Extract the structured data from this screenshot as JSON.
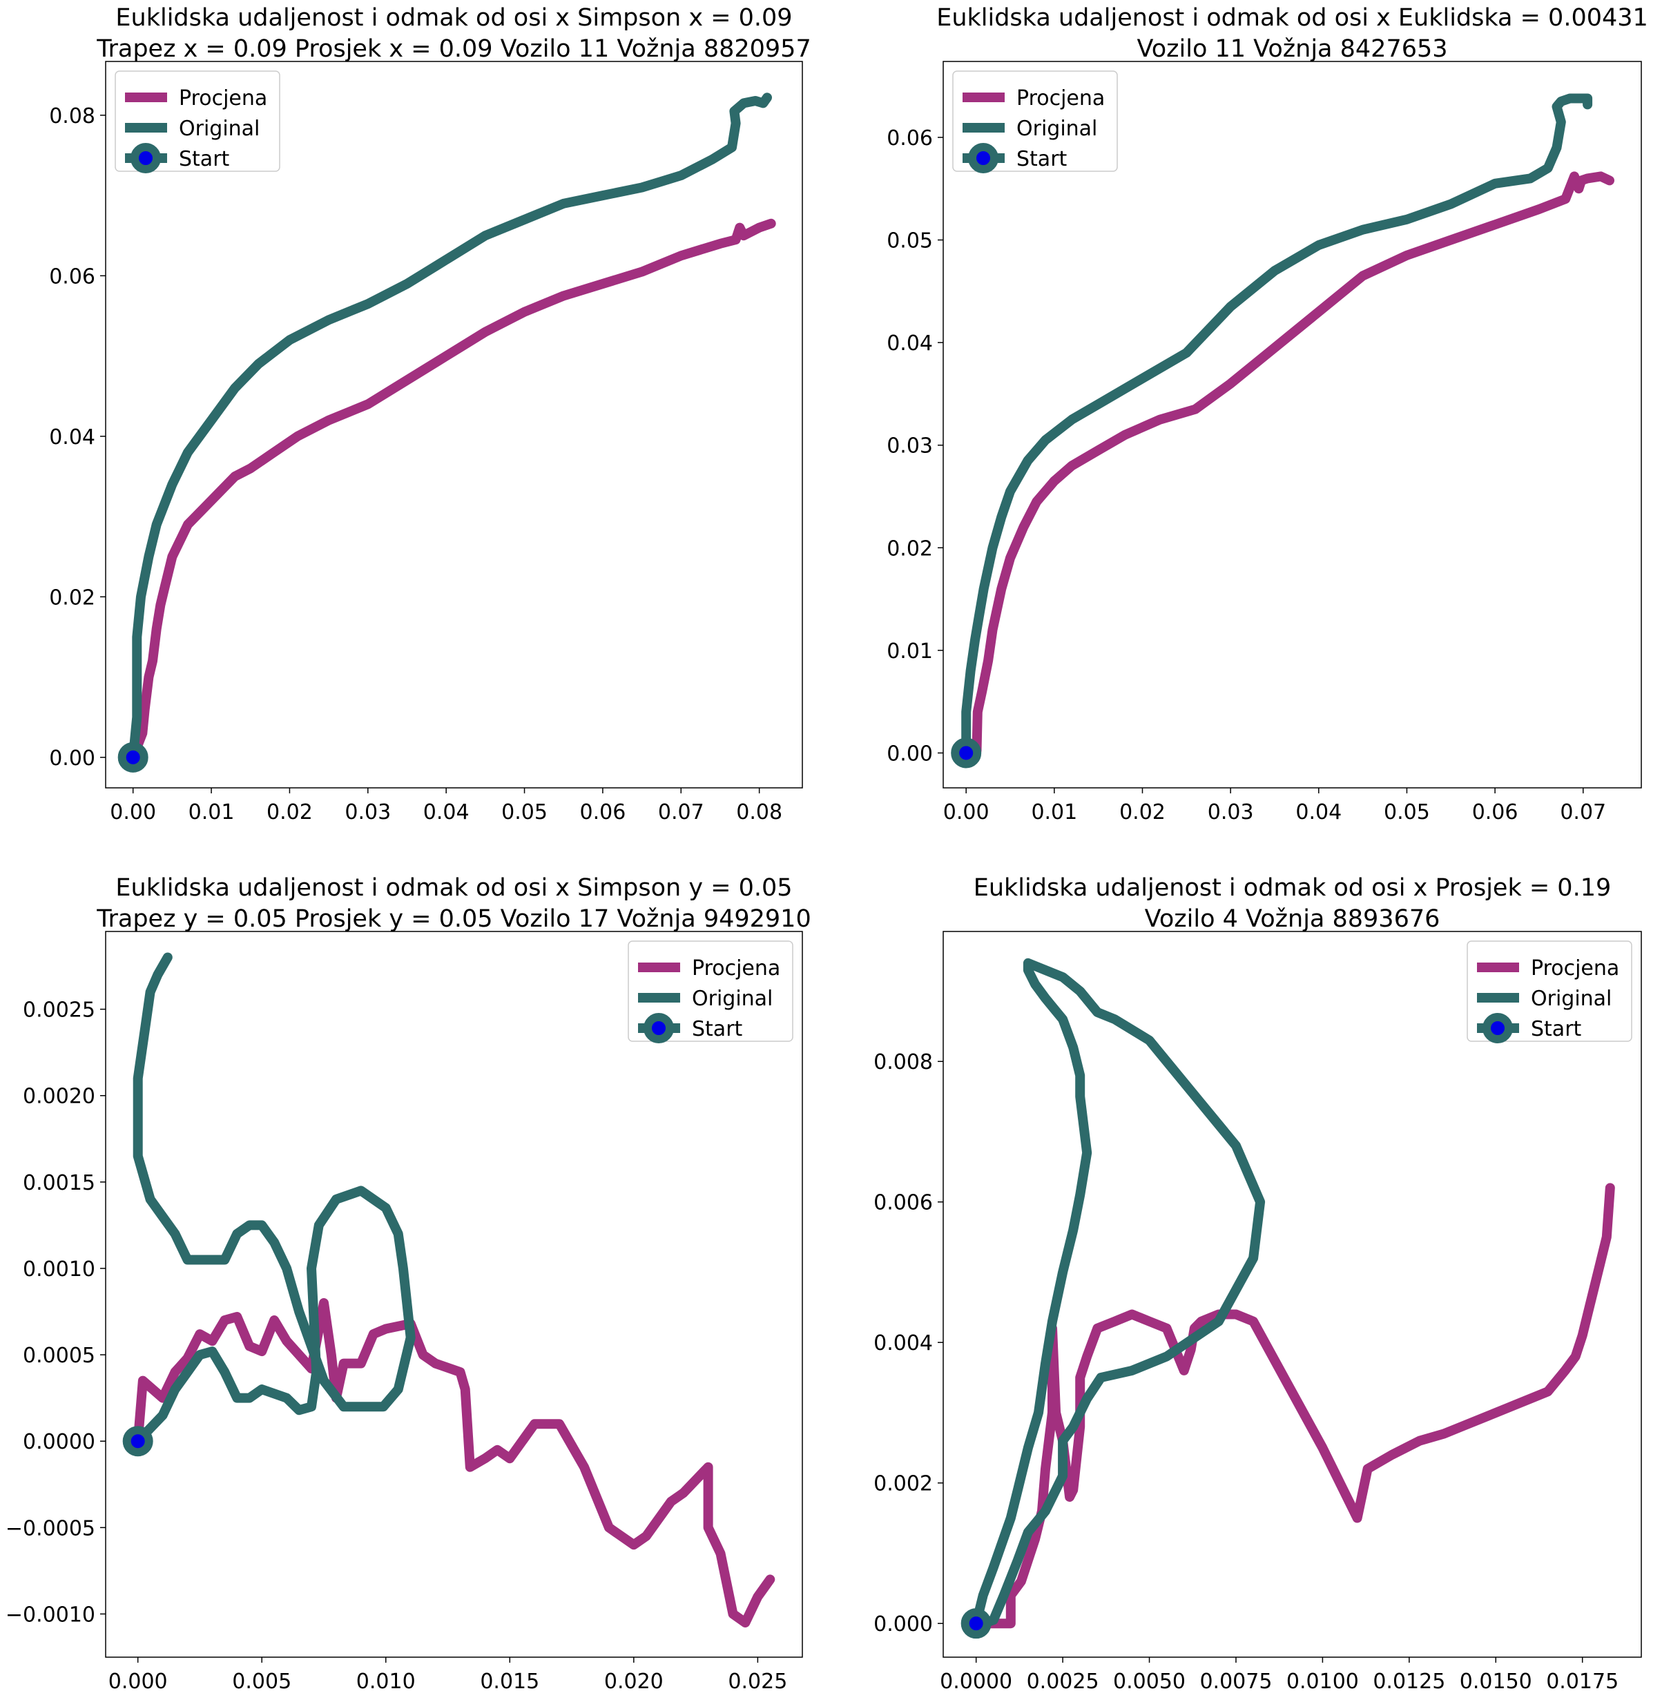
{
  "colors": {
    "procjena": "#a2307f",
    "original": "#2d6a6a",
    "start_marker_face": "#0000e6",
    "start_marker_edge": "#2d6a6a"
  },
  "chart_data": [
    {
      "type": "line",
      "title_lines": [
        "Euklidska udaljenost i odmak od osi x Simpson x = 0.09",
        "Trapez x = 0.09 Prosjek x = 0.09 Vozilo 11 Vožnja 8820957"
      ],
      "xlim": [
        -0.0035,
        0.0855
      ],
      "ylim": [
        -0.0038,
        0.0867
      ],
      "xticks": [
        0.0,
        0.01,
        0.02,
        0.03,
        0.04,
        0.05,
        0.06,
        0.07,
        0.08
      ],
      "xtick_labels": [
        "0.00",
        "0.01",
        "0.02",
        "0.03",
        "0.04",
        "0.05",
        "0.06",
        "0.07",
        "0.08"
      ],
      "yticks": [
        0.0,
        0.02,
        0.04,
        0.06,
        0.08
      ],
      "ytick_labels": [
        "0.00",
        "0.02",
        "0.04",
        "0.06",
        "0.08"
      ],
      "legend": {
        "position": "upper left",
        "entries": [
          "Procjena",
          "Original",
          "Start"
        ]
      },
      "series": [
        {
          "name": "Procjena",
          "x": [
            0.0,
            0.0012,
            0.0015,
            0.002,
            0.0025,
            0.003,
            0.0035,
            0.004,
            0.005,
            0.007,
            0.009,
            0.011,
            0.013,
            0.015,
            0.018,
            0.021,
            0.025,
            0.03,
            0.035,
            0.04,
            0.045,
            0.05,
            0.055,
            0.06,
            0.065,
            0.07,
            0.075,
            0.077,
            0.0775,
            0.078,
            0.08,
            0.0815
          ],
          "y": [
            0.0,
            0.003,
            0.006,
            0.01,
            0.012,
            0.016,
            0.019,
            0.021,
            0.025,
            0.029,
            0.031,
            0.033,
            0.035,
            0.036,
            0.038,
            0.04,
            0.042,
            0.044,
            0.047,
            0.05,
            0.053,
            0.0555,
            0.0575,
            0.059,
            0.0605,
            0.0625,
            0.064,
            0.0645,
            0.066,
            0.065,
            0.066,
            0.0665
          ]
        },
        {
          "name": "Original",
          "x": [
            0.0,
            0.0005,
            0.0005,
            0.001,
            0.002,
            0.003,
            0.005,
            0.007,
            0.01,
            0.013,
            0.016,
            0.02,
            0.025,
            0.03,
            0.035,
            0.04,
            0.045,
            0.05,
            0.055,
            0.06,
            0.065,
            0.07,
            0.074,
            0.0765,
            0.077,
            0.0768,
            0.078,
            0.0795,
            0.0805,
            0.081
          ],
          "y": [
            0.0,
            0.005,
            0.015,
            0.02,
            0.025,
            0.029,
            0.034,
            0.038,
            0.042,
            0.046,
            0.049,
            0.052,
            0.0545,
            0.0565,
            0.059,
            0.062,
            0.065,
            0.067,
            0.069,
            0.07,
            0.071,
            0.0725,
            0.0745,
            0.076,
            0.079,
            0.0805,
            0.0815,
            0.0818,
            0.0815,
            0.0822
          ]
        }
      ]
    },
    {
      "type": "line",
      "title_lines": [
        "Euklidska udaljenost i odmak od osi x Euklidska = 0.00431",
        "Vozilo 11 Vožnja 8427653"
      ],
      "xlim": [
        -0.0026,
        0.0766
      ],
      "ylim": [
        -0.0034,
        0.0674
      ],
      "xticks": [
        0.0,
        0.01,
        0.02,
        0.03,
        0.04,
        0.05,
        0.06,
        0.07
      ],
      "xtick_labels": [
        "0.00",
        "0.01",
        "0.02",
        "0.03",
        "0.04",
        "0.05",
        "0.06",
        "0.07"
      ],
      "yticks": [
        0.0,
        0.01,
        0.02,
        0.03,
        0.04,
        0.05,
        0.06
      ],
      "ytick_labels": [
        "0.00",
        "0.01",
        "0.02",
        "0.03",
        "0.04",
        "0.05",
        "0.06"
      ],
      "legend": {
        "position": "upper left",
        "entries": [
          "Procjena",
          "Original",
          "Start"
        ]
      },
      "series": [
        {
          "name": "Procjena",
          "x": [
            0.0,
            0.0012,
            0.0013,
            0.0018,
            0.0025,
            0.003,
            0.004,
            0.005,
            0.0065,
            0.008,
            0.01,
            0.012,
            0.015,
            0.018,
            0.022,
            0.026,
            0.03,
            0.035,
            0.04,
            0.045,
            0.05,
            0.055,
            0.06,
            0.065,
            0.068,
            0.069,
            0.0695,
            0.0698,
            0.0705,
            0.072,
            0.073
          ],
          "y": [
            0.0,
            0.0002,
            0.004,
            0.006,
            0.009,
            0.012,
            0.016,
            0.019,
            0.022,
            0.0245,
            0.0265,
            0.028,
            0.0295,
            0.031,
            0.0325,
            0.0335,
            0.036,
            0.0395,
            0.043,
            0.0465,
            0.0485,
            0.05,
            0.0515,
            0.053,
            0.054,
            0.0562,
            0.055,
            0.0558,
            0.056,
            0.0562,
            0.0558
          ]
        },
        {
          "name": "Original",
          "x": [
            0.0,
            0.0,
            0.0005,
            0.001,
            0.0015,
            0.002,
            0.003,
            0.004,
            0.005,
            0.007,
            0.009,
            0.012,
            0.015,
            0.02,
            0.025,
            0.03,
            0.035,
            0.04,
            0.045,
            0.05,
            0.055,
            0.06,
            0.064,
            0.066,
            0.067,
            0.0675,
            0.067,
            0.0675,
            0.0685,
            0.0705,
            0.0705
          ],
          "y": [
            0.0,
            0.004,
            0.008,
            0.011,
            0.0135,
            0.016,
            0.02,
            0.023,
            0.0255,
            0.0285,
            0.0305,
            0.0325,
            0.034,
            0.0365,
            0.039,
            0.0435,
            0.047,
            0.0495,
            0.051,
            0.052,
            0.0535,
            0.0555,
            0.056,
            0.057,
            0.059,
            0.0615,
            0.063,
            0.0635,
            0.0638,
            0.0638,
            0.0632
          ]
        }
      ]
    },
    {
      "type": "line",
      "title_lines": [
        "Euklidska udaljenost i odmak od osi x Simpson y = 0.05",
        "Trapez y = 0.05 Prosjek y = 0.05 Vozilo 17 Vožnja 9492910"
      ],
      "xlim": [
        -0.0013,
        0.0268
      ],
      "ylim": [
        -0.00125,
        0.00295
      ],
      "xticks": [
        0.0,
        0.005,
        0.01,
        0.015,
        0.02,
        0.025
      ],
      "xtick_labels": [
        "0.000",
        "0.005",
        "0.010",
        "0.015",
        "0.020",
        "0.025"
      ],
      "yticks": [
        -0.001,
        -0.0005,
        0.0,
        0.0005,
        0.001,
        0.0015,
        0.002,
        0.0025
      ],
      "ytick_labels": [
        "−0.0010",
        "−0.0005",
        "0.0000",
        "0.0005",
        "0.0010",
        "0.0015",
        "0.0020",
        "0.0025"
      ],
      "legend": {
        "position": "upper right",
        "entries": [
          "Procjena",
          "Original",
          "Start"
        ]
      },
      "series": [
        {
          "name": "Procjena",
          "x": [
            0.0,
            0.0002,
            0.001,
            0.0015,
            0.002,
            0.0025,
            0.003,
            0.0035,
            0.004,
            0.0045,
            0.005,
            0.0055,
            0.006,
            0.007,
            0.0075,
            0.0078,
            0.008,
            0.0083,
            0.0085,
            0.009,
            0.0095,
            0.01,
            0.011,
            0.0115,
            0.012,
            0.013,
            0.0132,
            0.0134,
            0.014,
            0.0145,
            0.015,
            0.016,
            0.017,
            0.018,
            0.019,
            0.02,
            0.0205,
            0.0215,
            0.022,
            0.023,
            0.023,
            0.0235,
            0.024,
            0.0245,
            0.025,
            0.0255
          ],
          "y": [
            0.0,
            0.00035,
            0.00025,
            0.0004,
            0.00048,
            0.00062,
            0.00058,
            0.0007,
            0.00072,
            0.00055,
            0.00052,
            0.0007,
            0.00058,
            0.00042,
            0.0008,
            0.0005,
            0.00025,
            0.00045,
            0.00045,
            0.00045,
            0.00062,
            0.00065,
            0.00068,
            0.0005,
            0.00045,
            0.0004,
            0.0003,
            -0.00015,
            -0.0001,
            -5e-05,
            -0.0001,
            0.0001,
            0.0001,
            -0.00015,
            -0.0005,
            -0.0006,
            -0.00055,
            -0.00035,
            -0.0003,
            -0.00015,
            -0.0005,
            -0.00065,
            -0.001,
            -0.00105,
            -0.0009,
            -0.0008
          ]
        },
        {
          "name": "Original",
          "x": [
            0.0,
            0.001,
            0.0015,
            0.002,
            0.0025,
            0.003,
            0.0035,
            0.004,
            0.0045,
            0.005,
            0.006,
            0.0065,
            0.007,
            0.0072,
            0.007,
            0.0073,
            0.008,
            0.009,
            0.0095,
            0.01,
            0.0105,
            0.0107,
            0.011,
            0.0105,
            0.0099,
            0.0093,
            0.0085,
            0.0083,
            0.0075,
            0.007,
            0.0065,
            0.006,
            0.0055,
            0.005,
            0.0045,
            0.004,
            0.0035,
            0.003,
            0.0025,
            0.002,
            0.0015,
            0.0005,
            0.0,
            0.0,
            0.0003,
            0.0005,
            0.0008,
            0.0012
          ],
          "y": [
            0.0,
            0.00015,
            0.0003,
            0.0004,
            0.0005,
            0.00052,
            0.0004,
            0.00025,
            0.00025,
            0.0003,
            0.00025,
            0.00018,
            0.0002,
            0.0004,
            0.001,
            0.00125,
            0.0014,
            0.00145,
            0.0014,
            0.00135,
            0.0012,
            0.001,
            0.0006,
            0.0003,
            0.0002,
            0.0002,
            0.0002,
            0.0002,
            0.00035,
            0.00055,
            0.00075,
            0.001,
            0.00115,
            0.00125,
            0.00125,
            0.0012,
            0.00105,
            0.00105,
            0.00105,
            0.00105,
            0.0012,
            0.0014,
            0.00165,
            0.0021,
            0.0024,
            0.0026,
            0.0027,
            0.0028
          ]
        }
      ]
    },
    {
      "type": "line",
      "title_lines": [
        "Euklidska udaljenost i odmak od osi x Prosjek = 0.19",
        "Vozilo 4 Vožnja 8893676"
      ],
      "xlim": [
        -0.00095,
        0.0192
      ],
      "ylim": [
        -0.00048,
        0.00985
      ],
      "xticks": [
        0.0,
        0.0025,
        0.005,
        0.0075,
        0.01,
        0.0125,
        0.015,
        0.0175
      ],
      "xtick_labels": [
        "0.0000",
        "0.0025",
        "0.0050",
        "0.0075",
        "0.0100",
        "0.0125",
        "0.0150",
        "0.0175"
      ],
      "yticks": [
        0.0,
        0.002,
        0.004,
        0.006,
        0.008
      ],
      "ytick_labels": [
        "0.000",
        "0.002",
        "0.004",
        "0.006",
        "0.008"
      ],
      "legend": {
        "position": "upper right",
        "entries": [
          "Procjena",
          "Original",
          "Start"
        ]
      },
      "series": [
        {
          "name": "Procjena",
          "x": [
            0.0,
            0.001,
            0.001,
            0.0013,
            0.0015,
            0.0017,
            0.0019,
            0.002,
            0.0022,
            0.0022,
            0.0023,
            0.0025,
            0.0027,
            0.0028,
            0.003,
            0.003,
            0.0032,
            0.0035,
            0.004,
            0.0045,
            0.005,
            0.0055,
            0.006,
            0.0062,
            0.0063,
            0.0065,
            0.007,
            0.0075,
            0.008,
            0.009,
            0.01,
            0.011,
            0.0113,
            0.012,
            0.0128,
            0.0135,
            0.014,
            0.0155,
            0.0165,
            0.017,
            0.0173,
            0.0175,
            0.0177,
            0.018,
            0.0182,
            0.0183
          ],
          "y": [
            0.0,
            0.0,
            0.0004,
            0.0006,
            0.0009,
            0.0012,
            0.0016,
            0.0022,
            0.003,
            0.0042,
            0.003,
            0.0026,
            0.0018,
            0.0019,
            0.0028,
            0.0035,
            0.0038,
            0.0042,
            0.0043,
            0.0044,
            0.0043,
            0.0042,
            0.0036,
            0.0039,
            0.0042,
            0.0043,
            0.0044,
            0.0044,
            0.0043,
            0.0034,
            0.0025,
            0.0015,
            0.0022,
            0.0024,
            0.0026,
            0.0027,
            0.0028,
            0.0031,
            0.0033,
            0.0036,
            0.0038,
            0.0041,
            0.0045,
            0.0051,
            0.0055,
            0.0062
          ]
        },
        {
          "name": "Original",
          "x": [
            0.0,
            0.0002,
            0.0005,
            0.001,
            0.0012,
            0.0015,
            0.0018,
            0.002,
            0.0022,
            0.0025,
            0.0028,
            0.003,
            0.0032,
            0.003,
            0.003,
            0.0028,
            0.0025,
            0.002,
            0.0017,
            0.0015,
            0.0015,
            0.002,
            0.0025,
            0.003,
            0.0035,
            0.004,
            0.005,
            0.0065,
            0.0075,
            0.0082,
            0.008,
            0.007,
            0.0055,
            0.0045,
            0.0036,
            0.0032,
            0.0028,
            0.0025,
            0.0025,
            0.002,
            0.0015,
            0.0012,
            0.0008,
            0.0005,
            0.0002
          ],
          "y": [
            0.0,
            0.0004,
            0.0008,
            0.0015,
            0.0019,
            0.0025,
            0.003,
            0.0037,
            0.0043,
            0.005,
            0.0056,
            0.0061,
            0.0067,
            0.0075,
            0.0078,
            0.0082,
            0.0086,
            0.0089,
            0.0091,
            0.0093,
            0.0094,
            0.0093,
            0.0092,
            0.009,
            0.0087,
            0.0086,
            0.0083,
            0.0074,
            0.0068,
            0.006,
            0.0052,
            0.0043,
            0.0038,
            0.0036,
            0.0035,
            0.0032,
            0.0028,
            0.0026,
            0.0021,
            0.0016,
            0.0013,
            0.0009,
            0.0004,
            5e-05,
            0.0
          ]
        }
      ]
    }
  ]
}
